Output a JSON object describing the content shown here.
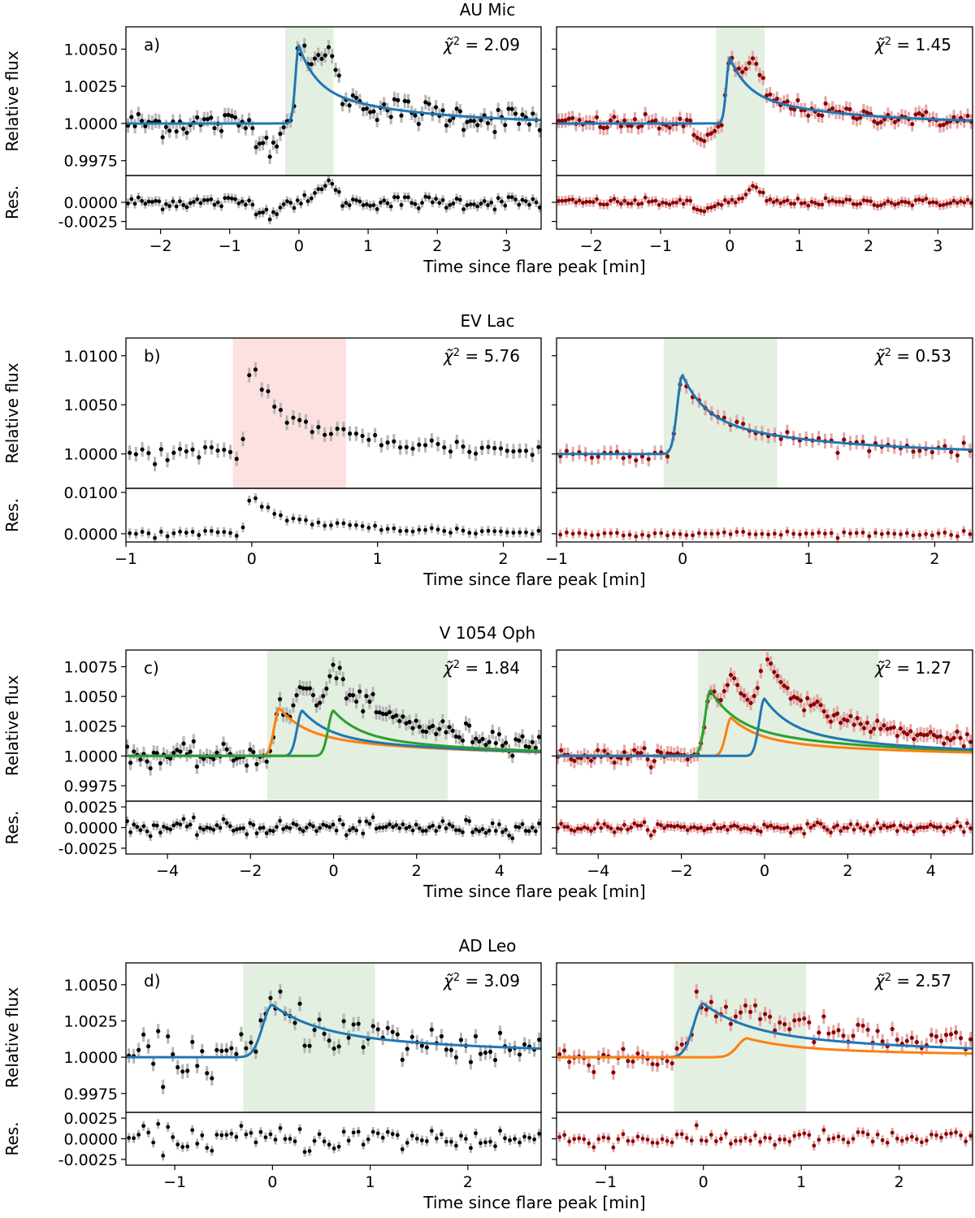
{
  "figure": {
    "ylabel_main": "Relative flux",
    "ylabel_res": "Res.",
    "xlabel": "Time since flare peak [min]",
    "colors": {
      "model": "#1f77b4",
      "orange": "#ff7f0e",
      "green": "#2ca02c",
      "left_points": "#000000",
      "right_points": "#8b0000",
      "left_err": "#b5b5b5",
      "right_err": "#e3a6a6",
      "window_green": "#e3efe0",
      "window_red": "#fde0e0"
    }
  },
  "chart_data": [
    {
      "type": "line",
      "title": "AU Mic",
      "xlim": [
        -2.5,
        3.5
      ],
      "xticks": [
        -2,
        -1,
        0,
        1,
        2,
        3
      ],
      "ylim": [
        0.9965,
        1.0065
      ],
      "yticks": [
        "0.9975",
        "1.0000",
        "1.0025",
        "1.0050"
      ],
      "res_ylim": [
        -0.0035,
        0.0035
      ],
      "res_yticks": [
        "-0.0025",
        "0.0000"
      ],
      "highlight_window": [
        -0.2,
        0.5
      ],
      "left": {
        "label": "a)",
        "chi2": "2.09",
        "highlight": "green",
        "peak_amplitude": 0.0052,
        "rise_start": -0.2,
        "peak_time": 0.0,
        "observed_features": [
          {
            "t": -0.45,
            "dip": -0.0015
          },
          {
            "t": 0.4,
            "bump": 0.0028
          }
        ],
        "models": [
          {
            "series": "flare",
            "color": "blue",
            "amplitude": 0.0052,
            "peak": 0.0
          }
        ]
      },
      "right": {
        "chi2": "1.45",
        "highlight": "green",
        "peak_amplitude": 0.0044,
        "rise_start": -0.2,
        "peak_time": 0.0,
        "observed_features": [
          {
            "t": -0.4,
            "dip": -0.0012
          },
          {
            "t": 0.35,
            "bump": 0.0018
          }
        ],
        "models": [
          {
            "series": "flare",
            "color": "blue",
            "amplitude": 0.0044,
            "peak": 0.0
          }
        ]
      }
    },
    {
      "type": "line",
      "title": "EV Lac",
      "xlim": [
        -1.0,
        2.3
      ],
      "xticks": [
        -1,
        0,
        1,
        2
      ],
      "ylim": [
        0.9965,
        1.0118
      ],
      "yticks": [
        "1.0000",
        "1.0050",
        "1.0100"
      ],
      "res_ylim": [
        -0.002,
        0.011
      ],
      "res_yticks": [
        "0.0000",
        "0.0100"
      ],
      "highlight_window": [
        -0.15,
        0.75
      ],
      "left": {
        "label": "b)",
        "chi2": "5.76",
        "highlight": "red",
        "peak_amplitude": 0.0095,
        "rise_start": -0.1,
        "peak_time": 0.0,
        "models": []
      },
      "right": {
        "chi2": "0.53",
        "highlight": "green",
        "peak_amplitude": 0.0082,
        "rise_start": -0.15,
        "peak_time": 0.0,
        "models": [
          {
            "series": "flare",
            "color": "blue",
            "amplitude": 0.008,
            "peak": 0.0
          }
        ]
      }
    },
    {
      "type": "line",
      "title": "V 1054 Oph",
      "xlim": [
        -5.0,
        5.0
      ],
      "xticks": [
        -4,
        -2,
        0,
        2,
        4
      ],
      "ylim": [
        0.9962,
        1.0089
      ],
      "yticks": [
        "0.9975",
        "1.0000",
        "1.0025",
        "1.0050",
        "1.0075"
      ],
      "res_ylim": [
        -0.0032,
        0.0032
      ],
      "res_yticks": [
        "-0.0025",
        "0.0000",
        "0.0025"
      ],
      "highlight_window": [
        -1.6,
        2.75
      ],
      "left": {
        "label": "c)",
        "chi2": "1.84",
        "highlight": "green",
        "models": [
          {
            "series": "flare 1",
            "color": "orange",
            "amplitude": 0.004,
            "peak": -1.3
          },
          {
            "series": "flare 2",
            "color": "blue",
            "amplitude": 0.0038,
            "peak": -0.75
          },
          {
            "series": "flare 3",
            "color": "green",
            "amplitude": 0.0038,
            "peak": 0.0
          }
        ]
      },
      "right": {
        "chi2": "1.27",
        "highlight": "green",
        "models": [
          {
            "series": "flare 1",
            "color": "green",
            "amplitude": 0.0055,
            "peak": -1.3
          },
          {
            "series": "flare 2",
            "color": "orange",
            "amplitude": 0.0032,
            "peak": -0.8
          },
          {
            "series": "flare 3",
            "color": "blue",
            "amplitude": 0.0048,
            "peak": 0.0
          }
        ]
      }
    },
    {
      "type": "line",
      "title": "AD Leo",
      "xlim": [
        -1.5,
        2.75
      ],
      "xticks": [
        -1,
        0,
        1,
        2
      ],
      "ylim": [
        0.9962,
        1.0065
      ],
      "yticks": [
        "0.9975",
        "1.0000",
        "1.0025",
        "1.0050"
      ],
      "res_ylim": [
        -0.0032,
        0.0032
      ],
      "res_yticks": [
        "-0.0025",
        "0.0000",
        "0.0025"
      ],
      "highlight_window": [
        -0.3,
        1.05
      ],
      "left": {
        "label": "d)",
        "chi2": "3.09",
        "highlight": "green",
        "models": [
          {
            "series": "flare",
            "color": "blue",
            "amplitude": 0.0036,
            "peak": 0.0
          }
        ]
      },
      "right": {
        "chi2": "2.57",
        "highlight": "green",
        "models": [
          {
            "series": "flare 1",
            "color": "blue",
            "amplitude": 0.0037,
            "peak": 0.0
          },
          {
            "series": "flare 2",
            "color": "orange",
            "amplitude": 0.0013,
            "peak": 0.45
          }
        ]
      }
    }
  ]
}
